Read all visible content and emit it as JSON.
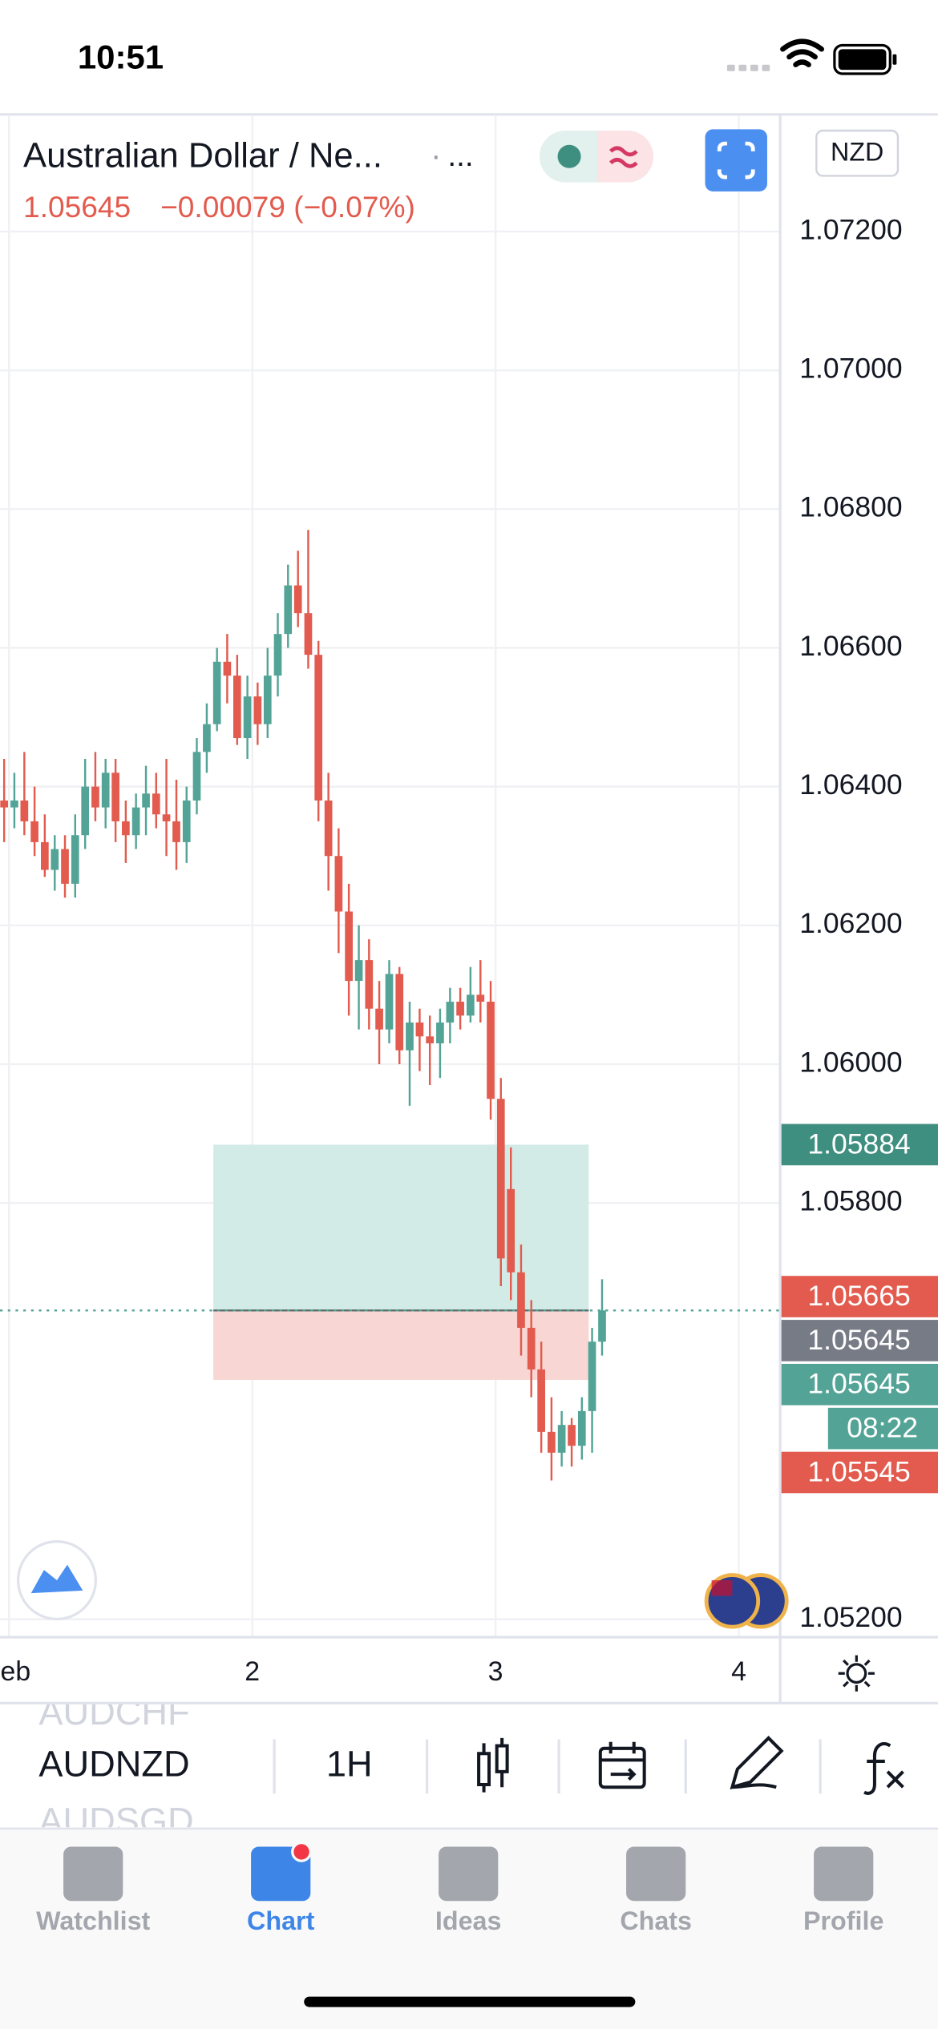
{
  "status_bar": {
    "time": "10:51"
  },
  "header": {
    "title": "Australian Dollar / Ne...",
    "separator": "·",
    "more": "...",
    "currency": "NZD",
    "last": "1.05645",
    "change": "−0.00079 (−0.07%)"
  },
  "chart_data": {
    "type": "candlestick",
    "x": [
      0.98,
      1.022,
      1.063,
      1.105,
      1.147,
      1.188,
      1.23,
      1.272,
      1.313,
      1.355,
      1.397,
      1.438,
      1.48,
      1.522,
      1.563,
      1.605,
      1.647,
      1.688,
      1.73,
      1.772,
      1.813,
      1.855,
      1.897,
      1.938,
      1.98,
      2.022,
      2.063,
      2.105,
      2.147,
      2.188,
      2.23,
      2.272,
      2.313,
      2.355,
      2.397,
      2.438,
      2.48,
      2.522,
      2.563,
      2.605,
      2.647,
      2.688,
      2.73,
      2.772,
      2.813,
      2.855,
      2.897,
      2.938,
      2.98,
      3.022,
      3.063,
      3.105,
      3.147,
      3.188,
      3.23,
      3.272,
      3.313,
      3.355,
      3.397,
      3.438
    ],
    "open": [
      1.0638,
      1.0637,
      1.0638,
      1.0635,
      1.0632,
      1.0628,
      1.0631,
      1.0626,
      1.0633,
      1.064,
      1.0637,
      1.0642,
      1.0635,
      1.0633,
      1.0637,
      1.0639,
      1.0636,
      1.0635,
      1.0632,
      1.0638,
      1.0645,
      1.0649,
      1.0658,
      1.0656,
      1.0647,
      1.0653,
      1.0649,
      1.0656,
      1.0662,
      1.0669,
      1.0665,
      1.0659,
      1.0638,
      1.063,
      1.0622,
      1.0612,
      1.0615,
      1.0608,
      1.0605,
      1.0613,
      1.0602,
      1.0606,
      1.0604,
      1.0603,
      1.0606,
      1.0609,
      1.0607,
      1.061,
      1.0609,
      1.0595,
      1.0582,
      1.057,
      1.0562,
      1.0556,
      1.0547,
      1.0544,
      1.0548,
      1.0545,
      1.055,
      1.056
    ],
    "high": [
      1.0644,
      1.0642,
      1.0645,
      1.064,
      1.0636,
      1.0633,
      1.0633,
      1.0636,
      1.0644,
      1.0645,
      1.0644,
      1.0644,
      1.0638,
      1.0639,
      1.0643,
      1.0642,
      1.0644,
      1.0641,
      1.064,
      1.0647,
      1.0652,
      1.066,
      1.0662,
      1.0659,
      1.0656,
      1.0655,
      1.066,
      1.0665,
      1.0672,
      1.0674,
      1.0677,
      1.0661,
      1.0642,
      1.0634,
      1.0626,
      1.062,
      1.0618,
      1.0612,
      1.0615,
      1.0614,
      1.0609,
      1.0608,
      1.0607,
      1.0608,
      1.0611,
      1.0611,
      1.0614,
      1.0615,
      1.0612,
      1.0598,
      1.0588,
      1.0574,
      1.0566,
      1.056,
      1.0552,
      1.055,
      1.0549,
      1.0552,
      1.0562,
      1.0569
    ],
    "low": [
      1.0632,
      1.0634,
      1.0633,
      1.063,
      1.0627,
      1.0625,
      1.0624,
      1.0624,
      1.0631,
      1.0635,
      1.0634,
      1.0632,
      1.0629,
      1.0631,
      1.0633,
      1.0634,
      1.063,
      1.0628,
      1.0629,
      1.0636,
      1.0642,
      1.0648,
      1.0652,
      1.0646,
      1.0644,
      1.0646,
      1.0647,
      1.0653,
      1.066,
      1.0663,
      1.0657,
      1.0635,
      1.0625,
      1.0616,
      1.0607,
      1.0605,
      1.0605,
      1.06,
      1.0603,
      1.06,
      1.0594,
      1.0599,
      1.0597,
      1.0598,
      1.0603,
      1.0605,
      1.0606,
      1.0606,
      1.0592,
      1.0568,
      1.0566,
      1.0558,
      1.0552,
      1.0544,
      1.054,
      1.0542,
      1.0542,
      1.0543,
      1.0544,
      1.0558
    ],
    "close": [
      1.0637,
      1.0638,
      1.0635,
      1.0632,
      1.0628,
      1.0631,
      1.0626,
      1.0633,
      1.064,
      1.0637,
      1.0642,
      1.0635,
      1.0633,
      1.0637,
      1.0639,
      1.0636,
      1.0635,
      1.0632,
      1.0638,
      1.0645,
      1.0649,
      1.0658,
      1.0656,
      1.0647,
      1.0653,
      1.0649,
      1.0656,
      1.0662,
      1.0669,
      1.0665,
      1.0659,
      1.0638,
      1.063,
      1.0622,
      1.0612,
      1.0615,
      1.0608,
      1.0605,
      1.0613,
      1.0602,
      1.0606,
      1.0604,
      1.0603,
      1.0606,
      1.0609,
      1.0607,
      1.061,
      1.0609,
      1.0595,
      1.0572,
      1.057,
      1.0562,
      1.0556,
      1.0547,
      1.0544,
      1.0548,
      1.0545,
      1.055,
      1.056,
      1.05645
    ],
    "up_color": "#53a496",
    "down_color": "#e25b4e",
    "xlim": [
      0.963,
      4.17
    ],
    "ylim": [
      1.05176,
      1.07366
    ],
    "xticks": [
      {
        "value": 1,
        "label": "eb"
      },
      2,
      3,
      4
    ],
    "yticks": [
      {
        "value": 1.072,
        "label": "1.07200"
      },
      {
        "value": 1.07,
        "label": "1.07000"
      },
      {
        "value": 1.068,
        "label": "1.06800"
      },
      {
        "value": 1.066,
        "label": "1.06600"
      },
      {
        "value": 1.064,
        "label": "1.06400"
      },
      {
        "value": 1.062,
        "label": "1.06200"
      },
      {
        "value": 1.06,
        "label": "1.06000"
      },
      {
        "value": 1.058,
        "label": "1.05800"
      },
      {
        "value": 1.052,
        "label": "1.05200"
      }
    ],
    "grid": true,
    "position": {
      "x": [
        1.84,
        3.383
      ],
      "entry": 1.05645,
      "target": 1.05884,
      "stop": 1.05545,
      "profit_color": "#d3ebe7",
      "loss_color": "#f7d6d3",
      "line_color": "#5d6b6b"
    },
    "price_labels": [
      {
        "value": 1.05884,
        "color": "#3f8f80"
      },
      {
        "value": 1.05665,
        "color": "#e25b4e"
      },
      {
        "value": 1.05645,
        "color": "#777b85"
      },
      {
        "value": 1.05645,
        "color": "#53a496"
      },
      {
        "label": "08:22",
        "color": "#53a496"
      },
      {
        "value": 1.05545,
        "color": "#e25b4e"
      }
    ]
  },
  "toolbar": {
    "symbols": [
      "AUDCHF",
      "AUDNZD",
      "AUDSGD"
    ],
    "interval": "1H"
  },
  "tab_bar": {
    "tabs": [
      "Watchlist",
      "Chart",
      "Ideas",
      "Chats",
      "Profile"
    ],
    "active": 1
  }
}
